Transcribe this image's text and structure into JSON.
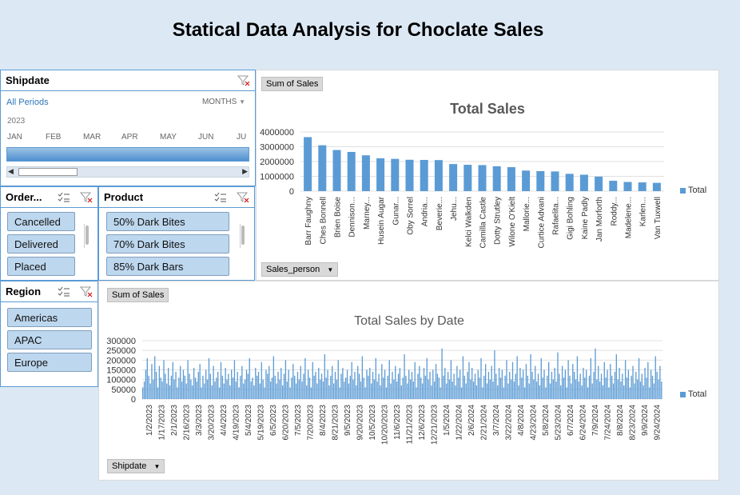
{
  "title": "Statical Data Analysis for Choclate Sales",
  "accent": "#5b9bd5",
  "slicer_item_bg": "#bdd7ee",
  "timeline": {
    "title": "Shipdate",
    "periods_link": "All Periods",
    "level_label": "MONTHS",
    "year": "2023",
    "months": [
      "JAN",
      "FEB",
      "MAR",
      "APR",
      "MAY",
      "JUN",
      "JU"
    ],
    "filter_icon": "clear-filter-icon"
  },
  "order_slicer": {
    "title": "Order...",
    "items": [
      "Cancelled",
      "Delivered",
      "Placed"
    ]
  },
  "product_slicer": {
    "title": "Product",
    "items": [
      "50% Dark Bites",
      "70% Dark Bites",
      "85% Dark Bars"
    ]
  },
  "region_slicer": {
    "title": "Region",
    "items": [
      "Americas",
      "APAC",
      "Europe"
    ]
  },
  "chart1": {
    "value_button": "Sum of Sales",
    "axis_button": "Sales_person",
    "legend": "Total"
  },
  "chart2": {
    "value_button": "Sum of Sales",
    "axis_button": "Shipdate",
    "legend": "Total"
  },
  "chart_data": [
    {
      "type": "bar",
      "title": "Total Sales",
      "categories": [
        "Barr Faughny",
        "Ches Bonnell",
        "Brien Boise",
        "Dennison...",
        "Marney...",
        "Husein Augar",
        "Gunar...",
        "Oby Sorrel",
        "Andria...",
        "Beverie...",
        "Jehu...",
        "Kelci Walkden",
        "Camilla Castle",
        "Dotty Strutley",
        "Wilone O'Kielt",
        "Mallorie...",
        "Curtice Advani",
        "Rafaelita...",
        "Gigi Bohling",
        "Kaine Padly",
        "Jan Morforth",
        "Roddy...",
        "Madelene...",
        "Karlen...",
        "Van Tuxwell"
      ],
      "series": [
        {
          "name": "Total",
          "values": [
            3650000,
            3100000,
            2780000,
            2650000,
            2420000,
            2220000,
            2180000,
            2120000,
            2110000,
            2100000,
            1830000,
            1780000,
            1760000,
            1680000,
            1620000,
            1390000,
            1350000,
            1330000,
            1170000,
            1110000,
            980000,
            700000,
            620000,
            590000,
            560000
          ]
        }
      ],
      "ylim": [
        0,
        4000000
      ],
      "yticks": [
        "0",
        "1000000",
        "2000000",
        "3000000",
        "4000000"
      ],
      "grid": true,
      "legend_position": "right"
    },
    {
      "type": "bar",
      "title": "Total Sales by Date",
      "x_tick_labels": [
        "1/2/2023",
        "1/17/2023",
        "2/1/2023",
        "2/16/2023",
        "3/3/2023",
        "3/20/2023",
        "4/4/2023",
        "4/19/2023",
        "5/4/2023",
        "5/19/2023",
        "6/5/2023",
        "6/20/2023",
        "7/5/2023",
        "7/20/2023",
        "8/4/2023",
        "8/21/2023",
        "9/5/2023",
        "9/20/2023",
        "10/5/2023",
        "10/20/2023",
        "11/6/2023",
        "11/21/2023",
        "12/6/2023",
        "12/21/2023",
        "1/5/2024",
        "1/22/2024",
        "2/6/2024",
        "2/21/2024",
        "3/7/2024",
        "3/22/2024",
        "4/8/2024",
        "4/23/2024",
        "5/8/2024",
        "5/23/2024",
        "6/7/2024",
        "6/24/2024",
        "7/9/2024",
        "7/24/2024",
        "8/8/2024",
        "8/23/2024",
        "9/9/2024",
        "9/24/2024"
      ],
      "series": [
        {
          "name": "Total",
          "values": [
            60000,
            90000,
            150000,
            210000,
            120000,
            80000,
            180000,
            100000,
            220000,
            140000,
            60000,
            170000,
            110000,
            90000,
            200000,
            130000,
            80000,
            160000,
            70000,
            120000,
            190000,
            100000,
            140000,
            60000,
            110000,
            170000,
            90000,
            150000,
            120000,
            80000,
            200000,
            130000,
            100000,
            70000,
            160000,
            110000,
            90000,
            140000,
            180000,
            60000,
            120000,
            80000,
            150000,
            100000,
            210000,
            130000,
            70000,
            170000,
            90000,
            110000,
            140000,
            60000,
            190000,
            120000,
            80000,
            160000,
            100000,
            130000,
            70000,
            150000,
            110000,
            200000,
            90000,
            140000,
            60000,
            120000,
            170000,
            80000,
            100000,
            150000,
            130000,
            210000,
            90000,
            110000,
            70000,
            160000,
            120000,
            140000,
            80000,
            190000,
            100000,
            60000,
            150000,
            130000,
            170000,
            90000,
            110000,
            220000,
            120000,
            80000,
            140000,
            100000,
            160000,
            70000,
            130000,
            200000,
            90000,
            150000,
            60000,
            110000,
            180000,
            120000,
            80000,
            140000,
            100000,
            170000,
            90000,
            130000,
            210000,
            70000,
            150000,
            110000,
            60000,
            190000,
            120000,
            140000,
            80000,
            160000,
            100000,
            130000,
            90000,
            230000,
            110000,
            150000,
            70000,
            120000,
            170000,
            80000,
            140000,
            100000,
            200000,
            60000,
            130000,
            160000,
            90000,
            110000,
            150000,
            80000,
            120000,
            190000,
            100000,
            140000,
            70000,
            170000,
            130000,
            90000,
            220000,
            110000,
            60000,
            150000,
            120000,
            160000,
            80000,
            140000,
            100000,
            210000,
            90000,
            130000,
            70000,
            180000,
            110000,
            150000,
            60000,
            120000,
            200000,
            80000,
            140000,
            100000,
            170000,
            90000,
            130000,
            160000,
            70000,
            110000,
            230000,
            120000,
            80000,
            150000,
            100000,
            140000,
            90000,
            190000,
            60000,
            130000,
            170000,
            110000,
            80000,
            160000,
            120000,
            210000,
            100000,
            140000,
            70000,
            150000,
            90000,
            180000,
            130000,
            110000,
            60000,
            260000,
            120000,
            160000,
            80000,
            140000,
            100000,
            200000,
            90000,
            130000,
            70000,
            170000,
            110000,
            150000,
            60000,
            220000,
            120000,
            80000,
            140000,
            190000,
            100000,
            160000,
            90000,
            130000,
            70000,
            150000,
            110000,
            210000,
            60000,
            120000,
            180000,
            80000,
            140000,
            100000,
            170000,
            90000,
            250000,
            130000,
            70000,
            160000,
            110000,
            150000,
            60000,
            120000,
            200000,
            80000,
            140000,
            100000,
            190000,
            90000,
            130000,
            220000,
            70000,
            160000,
            110000,
            150000,
            60000,
            180000,
            120000,
            80000,
            230000,
            140000,
            100000,
            170000,
            90000,
            130000,
            70000,
            210000,
            110000,
            150000,
            60000,
            120000,
            190000,
            80000,
            140000,
            100000,
            160000,
            90000,
            240000,
            130000,
            70000,
            170000,
            110000,
            150000,
            60000,
            200000,
            120000,
            80000,
            180000,
            140000,
            100000,
            220000,
            90000,
            130000,
            70000,
            160000,
            110000,
            150000,
            60000,
            120000,
            210000,
            80000,
            140000,
            260000,
            100000,
            170000,
            90000,
            130000,
            70000,
            190000,
            110000,
            150000,
            60000,
            180000,
            120000,
            80000,
            140000,
            230000,
            100000,
            160000,
            90000,
            130000,
            70000,
            200000,
            110000,
            150000,
            60000,
            120000,
            170000,
            80000,
            140000,
            100000,
            210000,
            90000,
            130000,
            70000,
            160000,
            110000,
            190000,
            60000,
            150000,
            120000,
            80000,
            220000,
            140000,
            100000,
            170000,
            90000
          ]
        }
      ],
      "ylim": [
        0,
        300000
      ],
      "yticks": [
        "0",
        "50000",
        "100000",
        "150000",
        "200000",
        "250000",
        "300000"
      ],
      "grid": true,
      "legend_position": "right"
    }
  ]
}
